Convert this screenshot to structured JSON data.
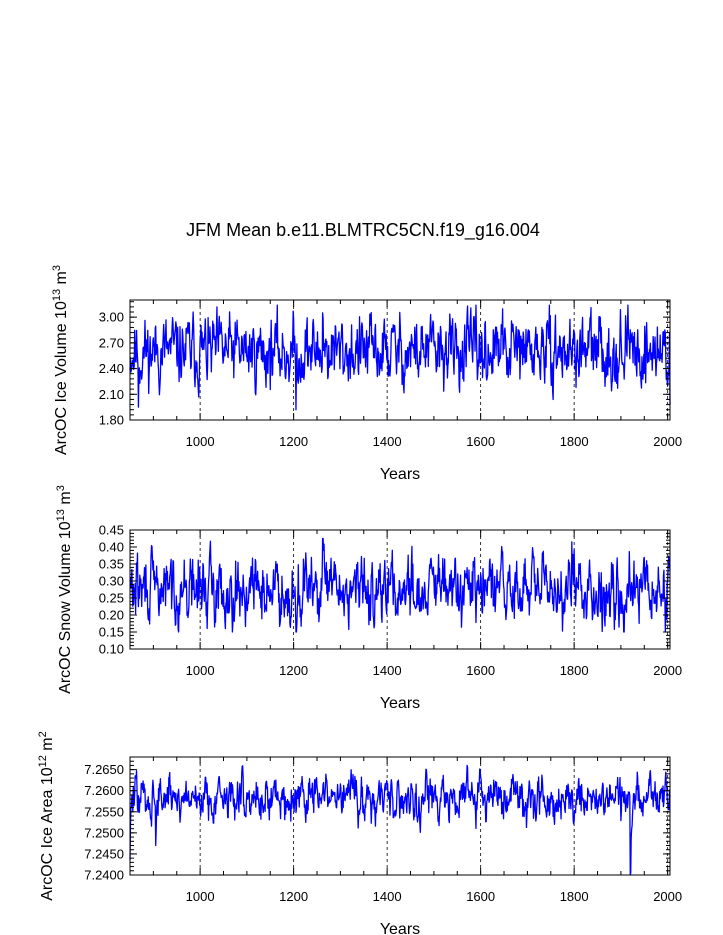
{
  "title": "JFM Mean b.e11.BLMTRC5CN.f19_g16.004",
  "series_color": "#0000ff",
  "chart_data": [
    {
      "type": "line",
      "name": "ice-volume",
      "ylabel_parts": [
        "ArcOC Ice Volume 10",
        "13",
        " m",
        "3"
      ],
      "xlabel": "Years",
      "xlim": [
        850,
        2005
      ],
      "xticks": [
        1000,
        1200,
        1400,
        1600,
        1800,
        2000
      ],
      "xtick_labels": [
        "1000",
        "1200",
        "1400",
        "1600",
        "1800",
        "2000"
      ],
      "ylim": [
        1.8,
        3.2
      ],
      "yticks": [
        1.8,
        2.1,
        2.4,
        2.7,
        3.0
      ],
      "ytick_labels": [
        "1.80",
        "2.10",
        "2.40",
        "2.70",
        "3.00"
      ],
      "base": 2.6,
      "spread": 0.17,
      "min": 1.92,
      "max": 3.14,
      "seed": 11,
      "events": [
        [
          868,
          1.95
        ],
        [
          1205,
          1.92
        ],
        [
          1262,
          3.05
        ],
        [
          1915,
          3.14
        ],
        [
          2005,
          1.98
        ]
      ]
    },
    {
      "type": "line",
      "name": "snow-volume",
      "ylabel_parts": [
        "ArcOC Snow Volume 10",
        "13",
        " m",
        "3"
      ],
      "xlabel": "Years",
      "xlim": [
        850,
        2005
      ],
      "xticks": [
        1000,
        1200,
        1400,
        1600,
        1800,
        2000
      ],
      "xtick_labels": [
        "1000",
        "1200",
        "1400",
        "1600",
        "1800",
        "2000"
      ],
      "ylim": [
        0.1,
        0.45
      ],
      "yticks": [
        0.1,
        0.15,
        0.2,
        0.25,
        0.3,
        0.35,
        0.4,
        0.45
      ],
      "ytick_labels": [
        "0.10",
        "0.15",
        "0.20",
        "0.25",
        "0.30",
        "0.35",
        "0.40",
        "0.45"
      ],
      "base": 0.275,
      "spread": 0.04,
      "min": 0.15,
      "max": 0.425,
      "seed": 29,
      "events": [
        [
          1205,
          0.15
        ],
        [
          1262,
          0.425
        ],
        [
          1795,
          0.415
        ],
        [
          1995,
          0.15
        ]
      ]
    },
    {
      "type": "line",
      "name": "ice-area",
      "ylabel_parts": [
        "ArcOC Ice Area 10",
        "12",
        " m",
        "2"
      ],
      "xlabel": "Years",
      "xlim": [
        850,
        2005
      ],
      "xticks": [
        1000,
        1200,
        1400,
        1600,
        1800,
        2000
      ],
      "xtick_labels": [
        "1000",
        "1200",
        "1400",
        "1600",
        "1800",
        "2000"
      ],
      "ylim": [
        7.24,
        7.268
      ],
      "yticks": [
        7.24,
        7.245,
        7.25,
        7.255,
        7.26,
        7.265
      ],
      "ytick_labels": [
        "7.2400",
        "7.2450",
        "7.2500",
        "7.2550",
        "7.2600",
        "7.2650"
      ],
      "base": 7.2585,
      "spread": 0.0022,
      "min": 7.24,
      "max": 7.2665,
      "seed": 47,
      "events": [
        [
          850,
          7.2435
        ],
        [
          905,
          7.247
        ],
        [
          1920,
          7.24
        ],
        [
          1921,
          7.2405
        ]
      ]
    }
  ]
}
